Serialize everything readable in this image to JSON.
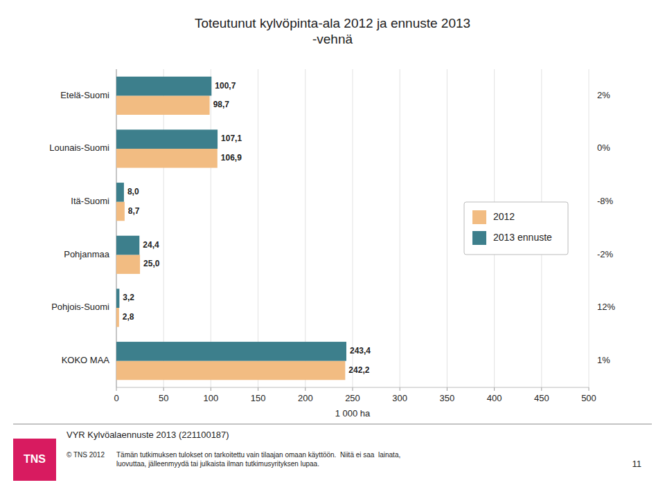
{
  "chart_data": {
    "type": "bar",
    "orientation": "horizontal",
    "title": "Toteutunut kylvöpinta-ala 2012 ja ennuste 2013\n-vehnä",
    "categories": [
      "Etelä-Suomi",
      "Lounais-Suomi",
      "Itä-Suomi",
      "Pohjanmaa",
      "Pohjois-Suomi",
      "KOKO MAA"
    ],
    "series": [
      {
        "name": "2012",
        "color": "#F2BC82",
        "values": [
          98.7,
          106.9,
          8.7,
          25.0,
          2.8,
          242.2
        ],
        "value_labels": [
          "98,7",
          "106,9",
          "8,7",
          "25,0",
          "2,8",
          "242,2"
        ]
      },
      {
        "name": "2013 ennuste",
        "color": "#3D7F8C",
        "values": [
          100.7,
          107.1,
          8.0,
          24.4,
          3.2,
          243.4
        ],
        "value_labels": [
          "100,7",
          "107,1",
          "8,0",
          "24,4",
          "3,2",
          "243,4"
        ]
      }
    ],
    "annotations": [
      "2%",
      "0%",
      "-8%",
      "-2%",
      "12%",
      "1%"
    ],
    "xlabel": "1 000 ha",
    "xlim": [
      0,
      500
    ],
    "xticks": [
      0,
      50,
      100,
      150,
      200,
      250,
      300,
      350,
      400,
      450,
      500
    ],
    "grid": true,
    "legend": "right",
    "data_labels": true,
    "footer": {
      "logo": "TNS",
      "logo_color": "#D81B60",
      "source": "VYR Kylvöalaennuste 2013 (221100187)",
      "copyright": "© TNS 2012",
      "disclaimer": "Tämän tutkimuksen tulokset on tarkoitettu vain tilaajan omaan käyttöön.  Niitä ei saa  lainata,\nluovuttaa, jälleenmyydä tai julkaista ilman tutkimusyrityksen lupaa.",
      "page": "11"
    }
  }
}
